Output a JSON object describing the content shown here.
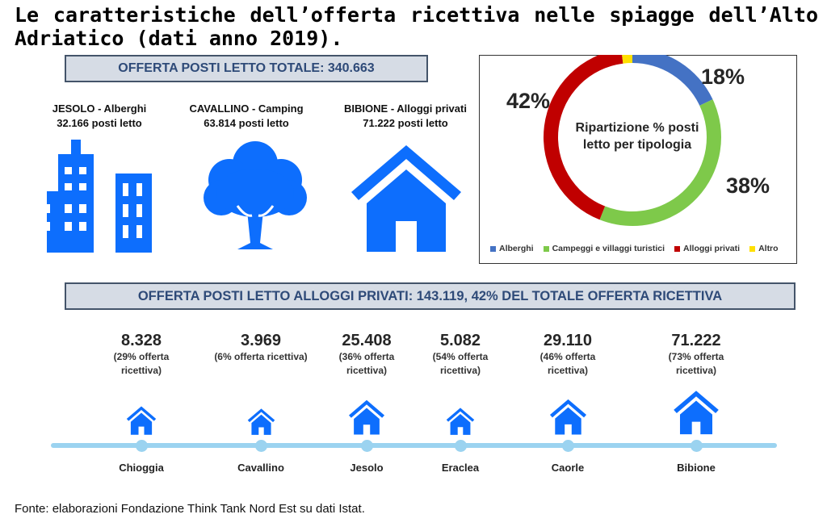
{
  "title": "Le caratteristiche dell’offerta ricettiva nelle spiagge dell’Alto Adriatico (dati anno 2019).",
  "banner_total": "OFFERTA POSTI LETTO TOTALE: 340.663",
  "highlights": [
    {
      "line1": "JESOLO - Alberghi",
      "line2": "32.166 posti letto",
      "icon": "buildings-icon"
    },
    {
      "line1": "CAVALLINO - Camping",
      "line2": "63.814 posti letto",
      "icon": "tree-icon"
    },
    {
      "line1": "BIBIONE - Alloggi privati",
      "line2": "71.222 posti letto",
      "icon": "house-icon"
    }
  ],
  "banner_private": "OFFERTA POSTI LETTO ALLOGGI PRIVATI: 143.119, 42% DEL TOTALE OFFERTA RICETTIVA",
  "colors": {
    "blue_icon": "#0d6efd",
    "alberghi": "#4472c4",
    "campeggi": "#7ec94a",
    "alloggi": "#c00000",
    "altro": "#ffe000",
    "timeline": "#9bd3f0"
  },
  "chart_data": [
    {
      "type": "pie",
      "variant": "donut",
      "title": "Ripartizione % posti letto per tipologia",
      "categories": [
        "Alberghi",
        "Campeggi e villaggi turistici",
        "Alloggi privati",
        "Altro"
      ],
      "values": [
        18,
        38,
        42,
        2
      ],
      "labels": [
        "18%",
        "38%",
        "42%"
      ],
      "legend_position": "bottom"
    },
    {
      "type": "bar",
      "variant": "icon-timeline",
      "categories": [
        "Chioggia",
        "Cavallino",
        "Jesolo",
        "Eraclea",
        "Caorle",
        "Bibione"
      ],
      "values": [
        8328,
        3969,
        25408,
        5082,
        29110,
        71222
      ],
      "value_labels": [
        "8.328",
        "3.969",
        "25.408",
        "5.082",
        "29.110",
        "71.222"
      ],
      "share_labels": [
        "(29% offerta ricettiva)",
        "(6% offerta ricettiva)",
        "(36% offerta ricettiva)",
        "(54% offerta ricettiva)",
        "(46% offerta ricettiva)",
        "(73% offerta ricettiva)"
      ]
    }
  ],
  "source": "Fonte: elaborazioni Fondazione Think Tank Nord Est su dati Istat."
}
